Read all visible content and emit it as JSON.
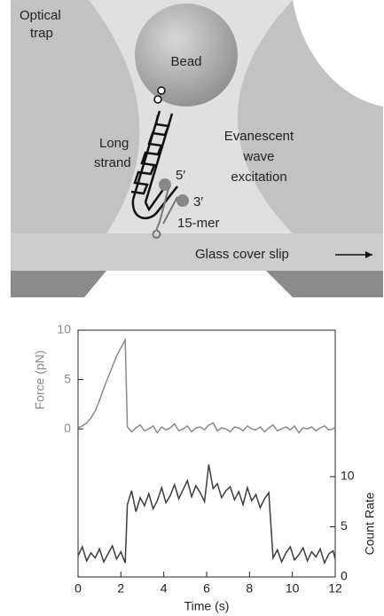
{
  "diagram": {
    "optical_trap": [
      "Optical",
      "trap"
    ],
    "bead": "Bead",
    "long_strand": [
      "Long",
      "strand"
    ],
    "evanescent": [
      "Evanescent",
      "wave",
      "excitation"
    ],
    "five_prime": "5′",
    "three_prime": "3′",
    "fifteen_mer": "15-mer",
    "glass": "Glass cover slip"
  },
  "chart_data": {
    "type": "line",
    "x_label": "Time (s)",
    "y_label": "Force (pN)",
    "y2_label": "Count Rate",
    "x": [
      0,
      0.2,
      0.4,
      0.6,
      0.8,
      1.0,
      1.2,
      1.4,
      1.6,
      1.8,
      2.0,
      2.2,
      2.3,
      2.5,
      2.7,
      2.9,
      3.1,
      3.3,
      3.5,
      3.7,
      3.9,
      4.1,
      4.3,
      4.5,
      4.7,
      4.9,
      5.1,
      5.3,
      5.5,
      5.7,
      5.9,
      6.1,
      6.3,
      6.5,
      6.7,
      6.9,
      7.1,
      7.3,
      7.5,
      7.7,
      7.9,
      8.1,
      8.3,
      8.5,
      8.7,
      8.9,
      9.1,
      9.3,
      9.5,
      9.7,
      9.9,
      10.1,
      10.3,
      10.5,
      10.7,
      10.9,
      11.1,
      11.3,
      11.5,
      11.7,
      11.9,
      12.0
    ],
    "series": [
      {
        "name": "Force (pN)",
        "color": "#8a8a8a",
        "values": [
          0.1,
          0.3,
          0.6,
          1.1,
          1.8,
          2.9,
          4.1,
          5.2,
          6.3,
          7.4,
          8.2,
          9.0,
          0.2,
          -0.3,
          0.1,
          0.4,
          -0.2,
          0,
          0.3,
          -0.4,
          0.2,
          -0.1,
          0.1,
          0.5,
          -0.2,
          0,
          0.3,
          -0.3,
          0.1,
          0.2,
          -0.1,
          0.4,
          0.6,
          -0.2,
          0.1,
          0,
          -0.3,
          0.2,
          0.1,
          -0.2,
          0.3,
          0,
          -0.1,
          0.2,
          -0.3,
          0.1,
          0.4,
          -0.2,
          0,
          0.2,
          -0.1,
          0.3,
          -0.4,
          0.1,
          0,
          0.2,
          -0.2,
          0.1,
          0.3,
          -0.1,
          0,
          0.2
        ]
      },
      {
        "name": "Count Rate",
        "color": "#3c3c3c",
        "axis": "y2",
        "values": [
          2.1,
          3.0,
          1.6,
          2.4,
          1.9,
          2.8,
          1.5,
          2.3,
          3.1,
          1.8,
          2.5,
          1.4,
          7.2,
          8.6,
          6.5,
          7.9,
          7.1,
          8.3,
          6.8,
          7.6,
          8.9,
          7.4,
          8.1,
          9.2,
          7.8,
          8.7,
          9.6,
          8.0,
          9.1,
          8.4,
          7.5,
          11.2,
          8.8,
          9.3,
          7.9,
          8.6,
          9.0,
          7.7,
          8.5,
          7.2,
          8.9,
          7.6,
          8.2,
          6.9,
          7.8,
          8.4,
          1.9,
          2.7,
          1.5,
          2.4,
          3.0,
          1.7,
          2.2,
          2.9,
          1.6,
          2.5,
          2.0,
          2.8,
          1.4,
          2.3,
          2.6,
          1.8
        ]
      }
    ],
    "xlim": [
      0,
      12
    ],
    "xticks": [
      0,
      2,
      4,
      6,
      8,
      10,
      12
    ],
    "ylim": [
      -15,
      10
    ],
    "yticks": [
      0,
      5,
      10
    ],
    "y2lim": [
      0,
      24.6
    ],
    "y2ticks": [
      0,
      5,
      10
    ]
  }
}
